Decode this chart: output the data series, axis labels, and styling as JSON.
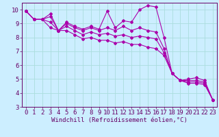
{
  "line1": [
    9.9,
    9.3,
    9.3,
    9.7,
    8.5,
    9.1,
    8.8,
    8.6,
    8.8,
    8.6,
    9.9,
    8.7,
    9.2,
    9.1,
    10.0,
    10.3,
    10.2,
    8.0,
    5.4,
    4.9,
    5.0,
    5.1,
    4.9,
    3.5
  ],
  "line2": [
    9.9,
    9.3,
    9.3,
    9.5,
    8.5,
    9.0,
    8.7,
    8.5,
    8.7,
    8.5,
    8.7,
    8.5,
    8.8,
    8.5,
    8.7,
    8.5,
    8.4,
    7.2,
    5.4,
    4.9,
    4.9,
    4.9,
    4.8,
    3.5
  ],
  "line3": [
    9.9,
    9.3,
    9.3,
    9.1,
    8.5,
    8.8,
    8.5,
    8.2,
    8.4,
    8.2,
    8.3,
    8.1,
    8.2,
    8.0,
    8.1,
    8.0,
    7.9,
    6.9,
    5.4,
    4.9,
    4.8,
    4.8,
    4.7,
    3.5
  ],
  "line4": [
    9.9,
    9.3,
    9.3,
    8.7,
    8.5,
    8.5,
    8.2,
    7.9,
    8.0,
    7.8,
    7.8,
    7.6,
    7.7,
    7.5,
    7.5,
    7.3,
    7.2,
    6.7,
    5.4,
    4.9,
    4.7,
    4.7,
    4.6,
    3.5
  ],
  "line_color": "#aa00aa",
  "bg_color": "#cceeff",
  "grid_color": "#aadddd",
  "xlabel": "Windchill (Refroidissement éolien,°C)",
  "ylim": [
    3,
    10.5
  ],
  "xlim_min": -0.5,
  "xlim_max": 23.5,
  "yticks": [
    3,
    4,
    5,
    6,
    7,
    8,
    9,
    10
  ],
  "xticks": [
    0,
    1,
    2,
    3,
    4,
    5,
    6,
    7,
    8,
    9,
    10,
    11,
    12,
    13,
    14,
    15,
    16,
    17,
    18,
    19,
    20,
    21,
    22,
    23
  ],
  "marker": "D",
  "markersize": 2.0,
  "linewidth": 0.8,
  "xlabel_fontsize": 6.5,
  "tick_fontsize": 6.5
}
